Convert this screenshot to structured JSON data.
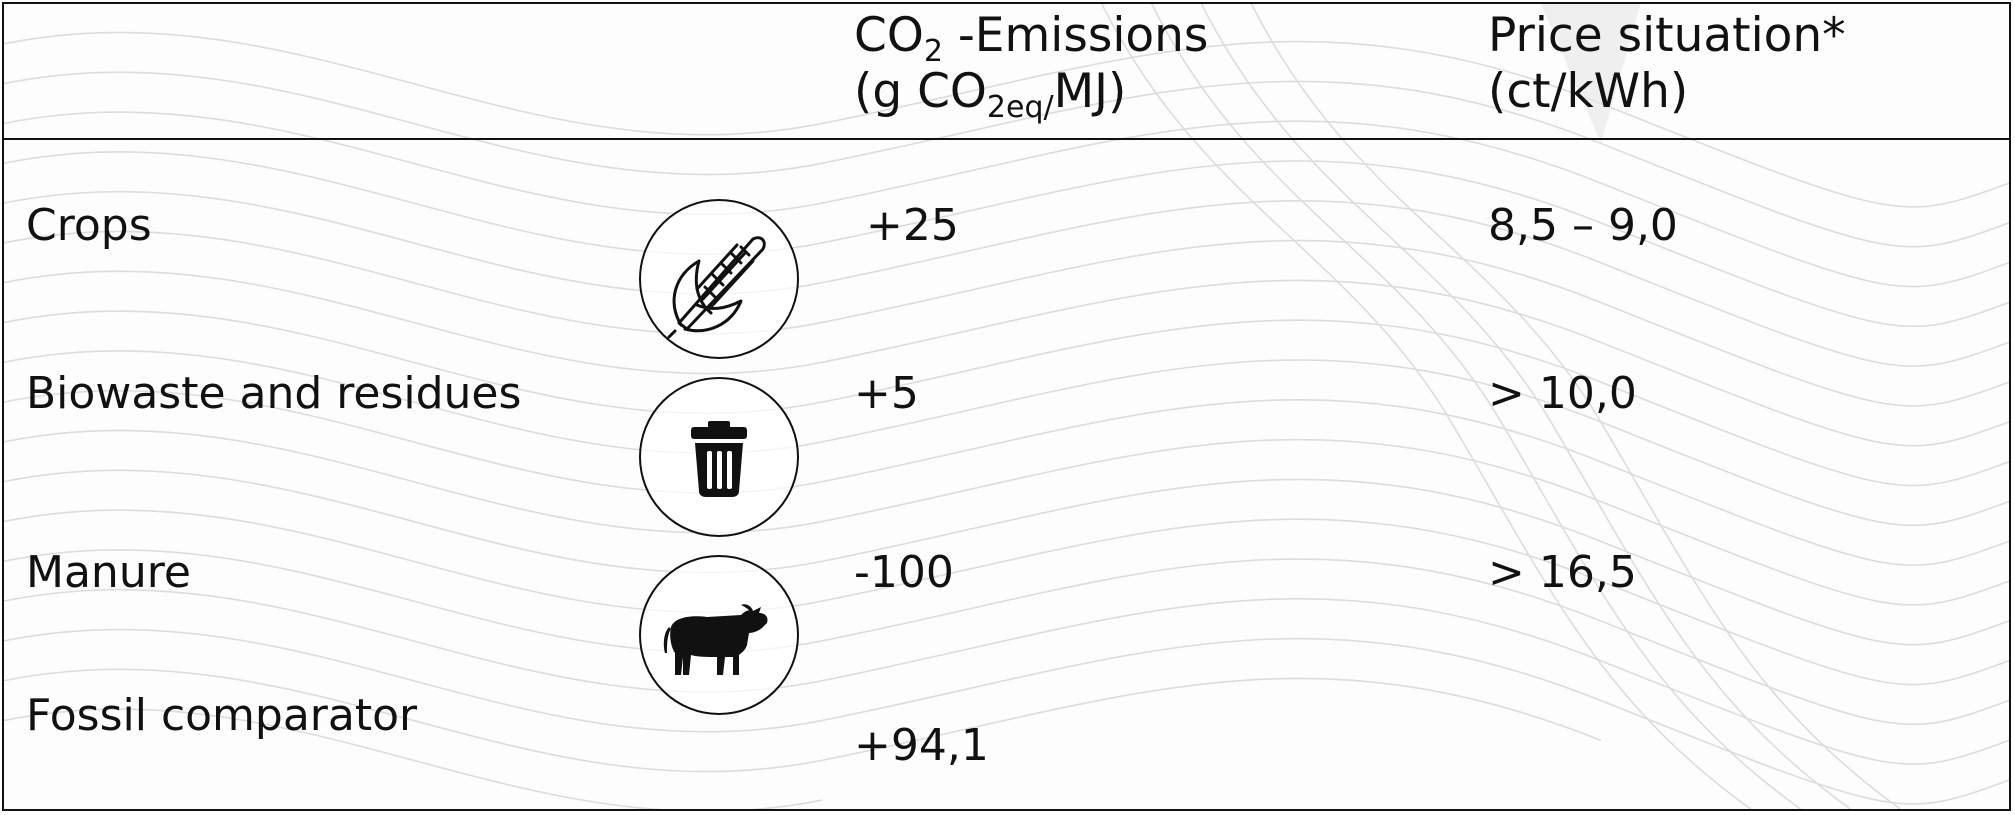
{
  "header": {
    "co2": {
      "line1_main": "CO",
      "line1_sub": "2",
      "line1_rest": " -Emissions",
      "line2_open": "(g CO",
      "line2_sub": "2eq/",
      "line2_close": "MJ)"
    },
    "price": {
      "line1": "Price situation*",
      "line2": "(ct/kWh)"
    }
  },
  "rows": [
    {
      "label": "Crops",
      "icon": "corn-icon",
      "emissions": "+25",
      "price": "8,5 – 9,0"
    },
    {
      "label": "Biowaste and residues",
      "icon": "trash-bin-icon",
      "emissions": "+5",
      "price": "> 10,0"
    },
    {
      "label": "Manure",
      "icon": "cow-icon",
      "emissions": "-100",
      "price": "> 16,5"
    },
    {
      "label": "Fossil comparator",
      "icon": "",
      "emissions": "+94,1",
      "price": ""
    }
  ],
  "colors": {
    "text": "#111111",
    "background": "#ffffff",
    "pattern": "#d8d8d8"
  }
}
